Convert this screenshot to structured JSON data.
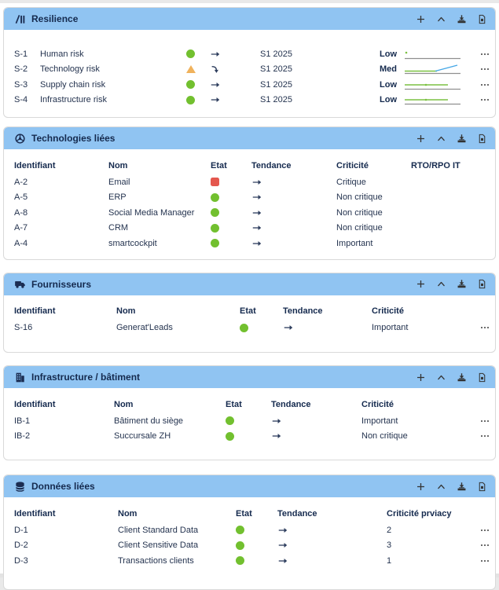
{
  "colors": {
    "header_bg": "#90c4f2",
    "panel_border": "#d9d9d9",
    "title_text": "#152a4e",
    "body_text": "#24334f",
    "state_green": "#72c02f",
    "state_red": "#e4574e",
    "state_orange": "#f0b25c",
    "spark_green": "#7cc142",
    "spark_blue": "#45a7e6",
    "spark_gray": "#8f8f8f"
  },
  "icons": {
    "panel_resilience": "slope-bars-icon",
    "panel_technologies": "steering-wheel-icon",
    "panel_fournisseurs": "truck-icon",
    "panel_infrastructure": "building-icon",
    "panel_donnees": "database-icon",
    "toolbar": [
      "plus-icon",
      "chevron-up-icon",
      "download-tray-icon",
      "export-file-icon"
    ],
    "row_menu": "ellipsis-icon",
    "state_ok": "green-circle",
    "state_critical": "red-square",
    "state_warning": "orange-triangle",
    "trend_stable": "right-arrow",
    "trend_down": "curving-down-arrow"
  },
  "panels": [
    {
      "title": "Resilience",
      "rows": [
        {
          "id": "S-1",
          "name": "Human risk",
          "state": "ok",
          "trend": "stable",
          "period": "S1 2025",
          "level": "Low",
          "spark": {
            "lines": [
              {
                "color": "#8f8f8f",
                "w": 1.2,
                "pts": [
                  [
                    1,
                    12.5
                  ],
                  [
                    72,
                    12.5
                  ]
                ]
              }
            ],
            "dots": [
              {
                "color": "#7cc142",
                "x": 3,
                "y": 5,
                "r": 1.3
              }
            ]
          }
        },
        {
          "id": "S-2",
          "name": "Technology risk",
          "state": "warning",
          "trend": "down",
          "period": "S1 2025",
          "level": "Med",
          "spark": {
            "lines": [
              {
                "color": "#8f8f8f",
                "w": 1.2,
                "pts": [
                  [
                    1,
                    12.5
                  ],
                  [
                    72,
                    12.5
                  ]
                ]
              },
              {
                "color": "#7cc142",
                "w": 1.4,
                "pts": [
                  [
                    1,
                    9.5
                  ],
                  [
                    42,
                    9.5
                  ]
                ]
              },
              {
                "color": "#45a7e6",
                "w": 1.4,
                "pts": [
                  [
                    40,
                    9.5
                  ],
                  [
                    68,
                    2
                  ]
                ]
              }
            ]
          }
        },
        {
          "id": "S-3",
          "name": "Supply chain risk",
          "state": "ok",
          "trend": "stable",
          "period": "S1 2025",
          "level": "Low",
          "spark": {
            "lines": [
              {
                "color": "#8f8f8f",
                "w": 1.2,
                "pts": [
                  [
                    1,
                    12.5
                  ],
                  [
                    72,
                    12.5
                  ]
                ]
              },
              {
                "color": "#7cc142",
                "w": 1.4,
                "pts": [
                  [
                    1,
                    7
                  ],
                  [
                    56,
                    7
                  ]
                ]
              }
            ],
            "dots": [
              {
                "color": "#7cc142",
                "x": 28,
                "y": 7,
                "r": 1.3
              }
            ]
          }
        },
        {
          "id": "S-4",
          "name": "Infrastructure risk",
          "state": "ok",
          "trend": "stable",
          "period": "S1 2025",
          "level": "Low",
          "spark": {
            "lines": [
              {
                "color": "#8f8f8f",
                "w": 1.2,
                "pts": [
                  [
                    1,
                    12.5
                  ],
                  [
                    72,
                    12.5
                  ]
                ]
              },
              {
                "color": "#7cc142",
                "w": 1.4,
                "pts": [
                  [
                    1,
                    7
                  ],
                  [
                    56,
                    7
                  ]
                ]
              }
            ],
            "dots": [
              {
                "color": "#7cc142",
                "x": 28,
                "y": 7,
                "r": 1.3
              }
            ]
          }
        }
      ]
    },
    {
      "title": "Technologies liées",
      "columns": [
        "Identifiant",
        "Nom",
        "Etat",
        "Tendance",
        "Criticité",
        "RTO/RPO IT"
      ],
      "rows": [
        {
          "id": "A-2",
          "name": "Email",
          "state": "critical",
          "trend": "stable",
          "criticite": "Critique",
          "rto": ""
        },
        {
          "id": "A-5",
          "name": "ERP",
          "state": "ok",
          "trend": "stable",
          "criticite": "Non critique",
          "rto": ""
        },
        {
          "id": "A-8",
          "name": "Social Media Manager",
          "state": "ok",
          "trend": "stable",
          "criticite": "Non critique",
          "rto": ""
        },
        {
          "id": "A-7",
          "name": "CRM",
          "state": "ok",
          "trend": "stable",
          "criticite": "Non critique",
          "rto": ""
        },
        {
          "id": "A-4",
          "name": "smartcockpit",
          "state": "ok",
          "trend": "stable",
          "criticite": "Important",
          "rto": ""
        }
      ]
    },
    {
      "title": "Fournisseurs",
      "columns": [
        "Identifiant",
        "Nom",
        "Etat",
        "Tendance",
        "Criticité"
      ],
      "rows": [
        {
          "id": "S-16",
          "name": "Generat'Leads",
          "state": "ok",
          "trend": "stable",
          "criticite": "Important"
        }
      ]
    },
    {
      "title": "Infrastructure / bâtiment",
      "columns": [
        "Identifiant",
        "Nom",
        "Etat",
        "Tendance",
        "Criticité"
      ],
      "rows": [
        {
          "id": "IB-1",
          "name": "Bâtiment du siège",
          "state": "ok",
          "trend": "stable",
          "criticite": "Important"
        },
        {
          "id": "IB-2",
          "name": "Succursale ZH",
          "state": "ok",
          "trend": "stable",
          "criticite": "Non critique"
        }
      ]
    },
    {
      "title": "Données liées",
      "columns": [
        "Identifiant",
        "Nom",
        "Etat",
        "Tendance",
        "Criticité prviacy"
      ],
      "rows": [
        {
          "id": "D-1",
          "name": "Client Standard Data",
          "state": "ok",
          "trend": "stable",
          "criticite": "2"
        },
        {
          "id": "D-2",
          "name": "Client Sensitive Data",
          "state": "ok",
          "trend": "stable",
          "criticite": "3"
        },
        {
          "id": "D-3",
          "name": "Transactions clients",
          "state": "ok",
          "trend": "stable",
          "criticite": "1"
        }
      ]
    }
  ]
}
